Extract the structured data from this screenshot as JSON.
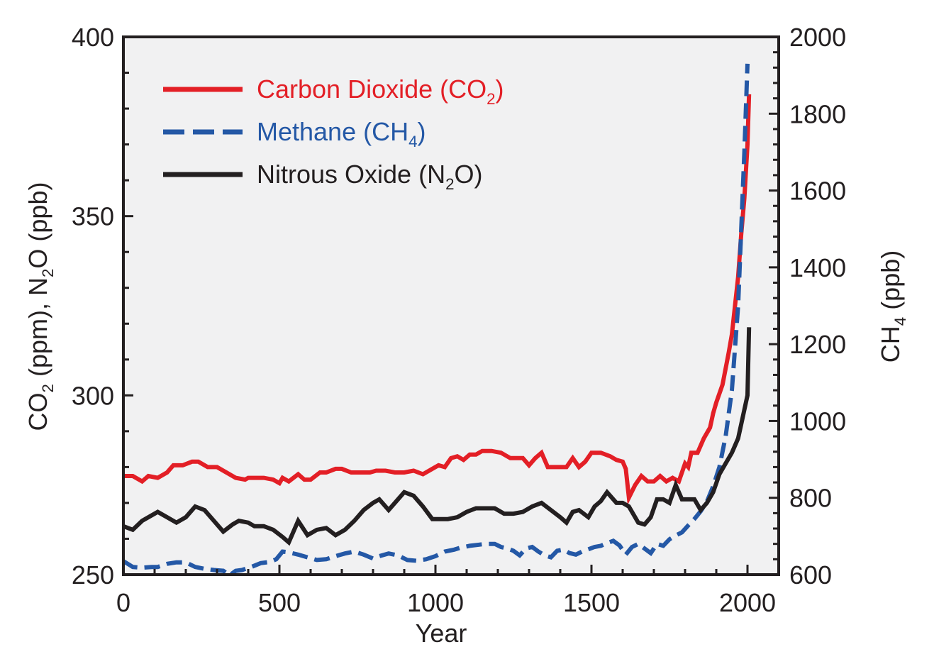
{
  "chart_data": {
    "type": "line",
    "title": "",
    "xlabel": "Year",
    "ylabel_left": {
      "parts": [
        "CO",
        "2",
        " (ppm), N",
        "2",
        "O (ppb)"
      ]
    },
    "ylabel_right": {
      "parts": [
        "CH",
        "4",
        " (ppb)"
      ]
    },
    "xlim": [
      0,
      2100
    ],
    "ylim_left": [
      250,
      400
    ],
    "ylim_right": [
      600,
      2000
    ],
    "x_ticks": [
      0,
      500,
      1000,
      1500,
      2000
    ],
    "y_left_ticks": [
      250,
      300,
      350,
      400
    ],
    "y_right_ticks": [
      600,
      800,
      1000,
      1200,
      1400,
      1600,
      1800,
      2000
    ],
    "grid": false,
    "legend_position": "top-left",
    "plot_background": "#f1f1f2",
    "series": [
      {
        "name": "Carbon Dioxide (CO2)",
        "legend_parts": [
          "Carbon Dioxide (CO",
          "2",
          ")"
        ],
        "color": "#e31f26",
        "dash": "solid",
        "axis": "left",
        "x": [
          0,
          30,
          60,
          80,
          110,
          140,
          160,
          190,
          220,
          240,
          270,
          300,
          330,
          360,
          390,
          400,
          420,
          450,
          480,
          500,
          510,
          530,
          560,
          580,
          600,
          630,
          650,
          680,
          700,
          730,
          760,
          790,
          810,
          840,
          870,
          900,
          930,
          960,
          990,
          1010,
          1030,
          1050,
          1070,
          1090,
          1110,
          1130,
          1150,
          1180,
          1210,
          1240,
          1260,
          1280,
          1300,
          1320,
          1340,
          1360,
          1380,
          1400,
          1420,
          1440,
          1460,
          1480,
          1500,
          1530,
          1560,
          1580,
          1600,
          1610,
          1620,
          1640,
          1660,
          1680,
          1700,
          1720,
          1740,
          1760,
          1780,
          1800,
          1810,
          1820,
          1840,
          1860,
          1880,
          1890,
          1900,
          1920,
          1940,
          1950,
          1960,
          1970,
          1980,
          1990,
          2000,
          2005
        ],
        "y": [
          277.5,
          277.5,
          276,
          277.5,
          277,
          278.5,
          280.5,
          280.5,
          281.5,
          281.5,
          280,
          280,
          278.5,
          277,
          276.5,
          277,
          277,
          277,
          276.5,
          275.5,
          277,
          276,
          278,
          276.5,
          276.5,
          278.5,
          278.5,
          279.5,
          279.5,
          278.5,
          278.5,
          278.5,
          279,
          279,
          278.5,
          278.5,
          279,
          278,
          279.5,
          280.5,
          280,
          282.5,
          283,
          282,
          283.5,
          283.5,
          284.5,
          284.5,
          284,
          282.5,
          282.5,
          282.5,
          280.5,
          282.5,
          284,
          280,
          280,
          280,
          280,
          282.5,
          280,
          281.5,
          284,
          284,
          283,
          282,
          281.5,
          279.5,
          271.5,
          275,
          277.5,
          276,
          276,
          277.5,
          276,
          277,
          276,
          281,
          280,
          284,
          284,
          288,
          291,
          295,
          298,
          303,
          312,
          317,
          325,
          333,
          345,
          355,
          370,
          384
        ]
      },
      {
        "name": "Methane (CH4)",
        "legend_parts": [
          "Methane (CH",
          "4",
          ")"
        ],
        "color": "#2458a6",
        "dash": "dashed",
        "axis": "right",
        "x": [
          0,
          30,
          60,
          90,
          110,
          140,
          170,
          200,
          230,
          260,
          290,
          320,
          340,
          360,
          380,
          410,
          440,
          470,
          490,
          510,
          530,
          560,
          590,
          620,
          650,
          680,
          710,
          740,
          770,
          800,
          820,
          850,
          880,
          910,
          940,
          970,
          1000,
          1030,
          1060,
          1080,
          1110,
          1140,
          1160,
          1190,
          1210,
          1230,
          1250,
          1270,
          1290,
          1310,
          1330,
          1350,
          1370,
          1390,
          1410,
          1430,
          1450,
          1470,
          1490,
          1510,
          1530,
          1550,
          1570,
          1590,
          1610,
          1630,
          1650,
          1670,
          1690,
          1710,
          1730,
          1750,
          1770,
          1790,
          1810,
          1830,
          1850,
          1870,
          1890,
          1910,
          1930,
          1950,
          1970,
          1980,
          1990,
          2000
        ],
        "y": [
          635,
          620,
          618,
          620,
          620,
          628,
          632,
          632,
          620,
          615,
          612,
          610,
          598,
          610,
          612,
          620,
          630,
          633,
          640,
          660,
          658,
          652,
          645,
          638,
          640,
          648,
          655,
          660,
          652,
          642,
          648,
          655,
          650,
          638,
          636,
          640,
          648,
          660,
          665,
          670,
          675,
          678,
          680,
          680,
          672,
          668,
          662,
          650,
          668,
          672,
          660,
          650,
          645,
          662,
          665,
          656,
          652,
          660,
          666,
          672,
          675,
          682,
          688,
          676,
          652,
          672,
          680,
          668,
          656,
          680,
          675,
          692,
          702,
          710,
          728,
          745,
          765,
          790,
          830,
          880,
          960,
          1080,
          1300,
          1500,
          1700,
          1930
        ]
      },
      {
        "name": "Nitrous Oxide (N2O)",
        "legend_parts": [
          "Nitrous Oxide (N",
          "2",
          "O)"
        ],
        "color": "#231f20",
        "dash": "solid",
        "axis": "left",
        "x": [
          0,
          30,
          60,
          90,
          110,
          140,
          170,
          200,
          230,
          260,
          290,
          320,
          350,
          370,
          400,
          420,
          450,
          480,
          510,
          530,
          560,
          590,
          620,
          650,
          680,
          710,
          740,
          770,
          800,
          820,
          850,
          880,
          900,
          930,
          960,
          990,
          1010,
          1040,
          1070,
          1100,
          1130,
          1160,
          1190,
          1220,
          1250,
          1280,
          1310,
          1340,
          1370,
          1400,
          1420,
          1440,
          1460,
          1490,
          1510,
          1530,
          1550,
          1580,
          1600,
          1620,
          1650,
          1670,
          1690,
          1710,
          1730,
          1750,
          1770,
          1790,
          1810,
          1830,
          1850,
          1870,
          1890,
          1910,
          1930,
          1950,
          1970,
          1980,
          1990,
          2000,
          2005
        ],
        "y": [
          263.5,
          262.5,
          265,
          266.5,
          267.5,
          266,
          264.5,
          266,
          269,
          268,
          265,
          262,
          264,
          265,
          264.5,
          263.5,
          263.5,
          262.5,
          260.5,
          259,
          265,
          261,
          262.5,
          263,
          261,
          262.5,
          265,
          268,
          270,
          271,
          268,
          271,
          273,
          272,
          269,
          265.5,
          265.5,
          265.5,
          266,
          267.5,
          268.5,
          268.5,
          268.5,
          267,
          267,
          267.5,
          269,
          270,
          268,
          266,
          264.5,
          267.5,
          268,
          266,
          269,
          270.5,
          273,
          270,
          270,
          269,
          264.5,
          264,
          266,
          271,
          271,
          270,
          275,
          271,
          271,
          271,
          268,
          270,
          273,
          278,
          281,
          284,
          288,
          292,
          296,
          300,
          319
        ]
      }
    ]
  }
}
